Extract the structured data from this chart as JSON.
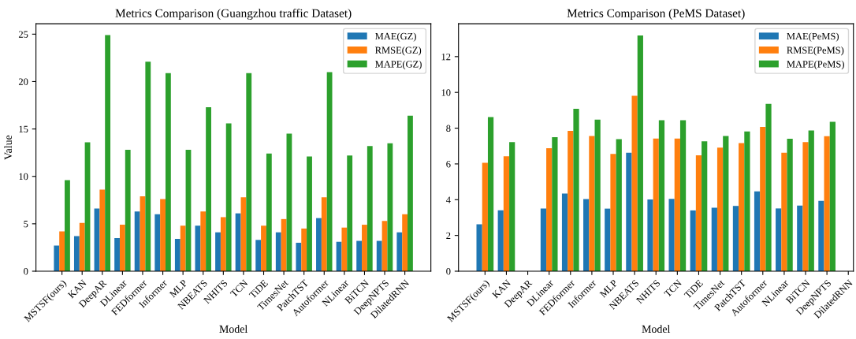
{
  "chart_data": [
    {
      "type": "bar",
      "title": "Metrics Comparison (Guangzhou traffic Dataset)",
      "xlabel": "Model",
      "ylabel": "Value",
      "categories": [
        "MSTSF(ours)",
        "KAN",
        "DeepAR",
        "DLinear",
        "FEDformer",
        "Informer",
        "MLP",
        "NBEATS",
        "NHITS",
        "TCN",
        "TiDE",
        "TimesNet",
        "PatchTST",
        "Autoformer",
        "NLinear",
        "BiTCN",
        "DeepNPTS",
        "DilatedRNN"
      ],
      "series": [
        {
          "name": "MAE(GZ)",
          "color": "#1f77b4",
          "values": [
            2.7,
            3.7,
            6.6,
            3.5,
            6.3,
            6.0,
            3.4,
            4.8,
            4.1,
            6.1,
            3.3,
            4.1,
            3.0,
            5.6,
            3.1,
            3.2,
            3.2,
            4.1
          ]
        },
        {
          "name": "RMSE(GZ)",
          "color": "#ff7f0e",
          "values": [
            4.2,
            5.1,
            8.6,
            4.9,
            7.9,
            7.6,
            4.8,
            6.3,
            5.7,
            7.8,
            4.8,
            5.5,
            4.5,
            7.8,
            4.6,
            4.9,
            5.3,
            6.0
          ]
        },
        {
          "name": "MAPE(GZ)",
          "color": "#2ca02c",
          "values": [
            9.6,
            13.6,
            24.9,
            12.8,
            22.1,
            20.9,
            12.8,
            17.3,
            15.6,
            20.9,
            12.4,
            14.5,
            12.1,
            21.0,
            12.2,
            13.2,
            13.5,
            16.4
          ]
        }
      ],
      "ylim": [
        0,
        26.1
      ],
      "yticks": [
        0,
        5,
        10,
        15,
        20,
        25
      ],
      "legend": "top right",
      "grid": false
    },
    {
      "type": "bar",
      "title": "Metrics Comparison (PeMS Dataset)",
      "xlabel": "Model",
      "categories": [
        "MSTSF(ours)",
        "KAN",
        "DeepAR",
        "DLinear",
        "FEDformer",
        "Informer",
        "MLP",
        "NBEATS",
        "NHITS",
        "TCN",
        "TiDE",
        "TimesNet",
        "PatchTST",
        "Autoformer",
        "NLinear",
        "BiTCN",
        "DeepNPTS",
        "DilatedRNN"
      ],
      "series": [
        {
          "name": "MAE(PeMS)",
          "color": "#1f77b4",
          "values": [
            2.62,
            3.41,
            null,
            3.51,
            4.34,
            4.03,
            3.5,
            6.63,
            4.01,
            4.04,
            3.4,
            3.55,
            3.65,
            4.46,
            3.51,
            3.67,
            3.93,
            null
          ]
        },
        {
          "name": "RMSE(PeMS)",
          "color": "#ff7f0e",
          "values": [
            6.06,
            6.43,
            null,
            6.88,
            7.85,
            7.56,
            6.56,
            9.81,
            7.42,
            7.42,
            6.48,
            6.91,
            7.16,
            8.07,
            6.63,
            7.22,
            7.55,
            null
          ]
        },
        {
          "name": "MAPE(PeMS)",
          "color": "#2ca02c",
          "values": [
            8.62,
            7.22,
            null,
            7.49,
            9.08,
            8.48,
            7.38,
            13.18,
            8.44,
            8.44,
            7.26,
            7.56,
            7.82,
            9.36,
            7.41,
            7.87,
            8.35,
            null
          ]
        }
      ],
      "ylim": [
        0,
        13.84
      ],
      "yticks": [
        0,
        2,
        4,
        6,
        8,
        10,
        12
      ],
      "legend": "top right",
      "grid": false
    }
  ]
}
